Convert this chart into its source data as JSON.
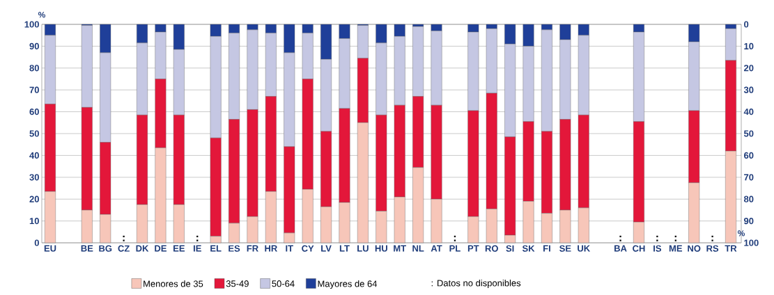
{
  "chart_data": {
    "type": "bar",
    "stacked": true,
    "ylabel": "%",
    "y2label": "%",
    "categories": [
      "EU",
      null,
      "BE",
      "BG",
      "CZ",
      "DK",
      "DE",
      "EE",
      "IE",
      "EL",
      "ES",
      "FR",
      "HR",
      "IT",
      "CY",
      "LV",
      "LT",
      "LU",
      "HU",
      "MT",
      "NL",
      "AT",
      "PL",
      "PT",
      "RO",
      "SI",
      "SK",
      "FI",
      "SE",
      "UK",
      null,
      "BA",
      "CH",
      "IS",
      "ME",
      "NO",
      "RS",
      "TR"
    ],
    "series": [
      {
        "name": "Menores de 35",
        "color": "#f7c6b9",
        "values": [
          23.5,
          null,
          15,
          13,
          null,
          17.5,
          43.5,
          17.5,
          null,
          3,
          9,
          12,
          23.5,
          4.5,
          24.5,
          16.5,
          18.5,
          55,
          14.5,
          21,
          34.5,
          20,
          null,
          12,
          15.5,
          3.5,
          19,
          13.5,
          15,
          16,
          null,
          null,
          9.5,
          null,
          null,
          27.5,
          null,
          42
        ]
      },
      {
        "name": "35-49",
        "color": "#e3173a",
        "values": [
          40,
          null,
          47,
          33,
          null,
          41,
          31.5,
          41,
          null,
          45,
          47.5,
          49,
          43.5,
          39.5,
          50.5,
          34.5,
          43,
          29.5,
          44,
          42,
          32.5,
          43,
          null,
          48.5,
          53,
          45,
          36.5,
          37.5,
          41.5,
          42.5,
          null,
          null,
          46,
          null,
          null,
          33,
          null,
          41.5
        ]
      },
      {
        "name": "50-64",
        "color": "#c5c7e3",
        "values": [
          31.5,
          null,
          37.5,
          41,
          null,
          33,
          21.5,
          30,
          null,
          46.5,
          39.5,
          36.5,
          29,
          43,
          21,
          33,
          32,
          15,
          33,
          31.5,
          32,
          34,
          null,
          36,
          29.5,
          42.5,
          34.5,
          46.5,
          36.5,
          36.5,
          null,
          null,
          41,
          null,
          null,
          31.5,
          null,
          14.5
        ]
      },
      {
        "name": "Mayores de 64",
        "color": "#1f3f99",
        "values": [
          5,
          null,
          0.5,
          13,
          null,
          8.5,
          3.5,
          11.5,
          null,
          5.5,
          4,
          2.5,
          4,
          13,
          4,
          16,
          6.5,
          0.5,
          8.5,
          5.5,
          1,
          3,
          null,
          3.5,
          2,
          9,
          10,
          2.5,
          7,
          5,
          null,
          null,
          3.5,
          null,
          null,
          8,
          null,
          2
        ]
      }
    ],
    "ylim": [
      0,
      100
    ],
    "yticks": [
      0,
      10,
      20,
      30,
      40,
      50,
      60,
      70,
      80,
      90,
      100
    ],
    "y2lim": [
      100,
      0
    ],
    "y2ticks": [
      0,
      10,
      20,
      30,
      40,
      50,
      60,
      70,
      80,
      90,
      100
    ],
    "grid": "y",
    "legend": "bottom",
    "annotations": [
      ":",
      ":",
      ":",
      ":",
      ":",
      ":",
      ":",
      ": Datos no disponibles"
    ]
  }
}
